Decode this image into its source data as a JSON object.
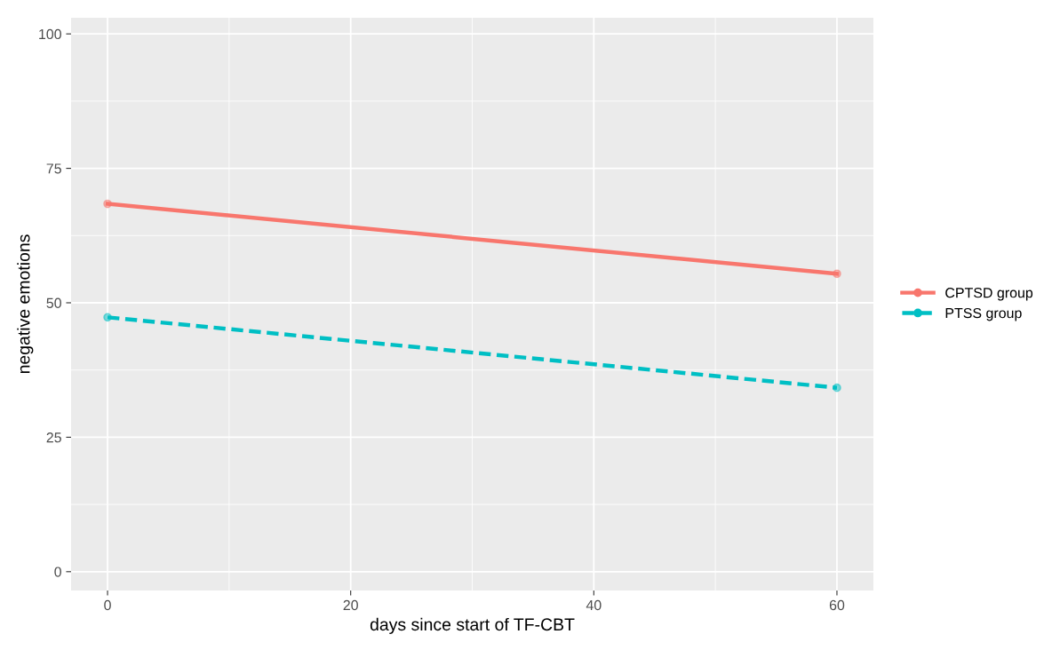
{
  "chart_data": {
    "type": "line",
    "xlabel": "days since start of TF-CBT",
    "ylabel": "negative emotions",
    "x": [
      0,
      60
    ],
    "series": [
      {
        "name": "CPTSD group",
        "color": "#f8766d",
        "values": [
          68.4,
          55.4
        ],
        "line_style": "solid"
      },
      {
        "name": "PTSS group",
        "color": "#00bfc4",
        "values": [
          47.3,
          34.2
        ],
        "line_style": "dashed"
      }
    ],
    "xlim": [
      -3,
      63
    ],
    "xticks": [
      0,
      20,
      40,
      60
    ],
    "ylim": [
      -3.5,
      103
    ],
    "yticks": [
      0,
      25,
      50,
      75,
      100
    ],
    "grid": true,
    "legend": "right",
    "marker": "circle"
  }
}
